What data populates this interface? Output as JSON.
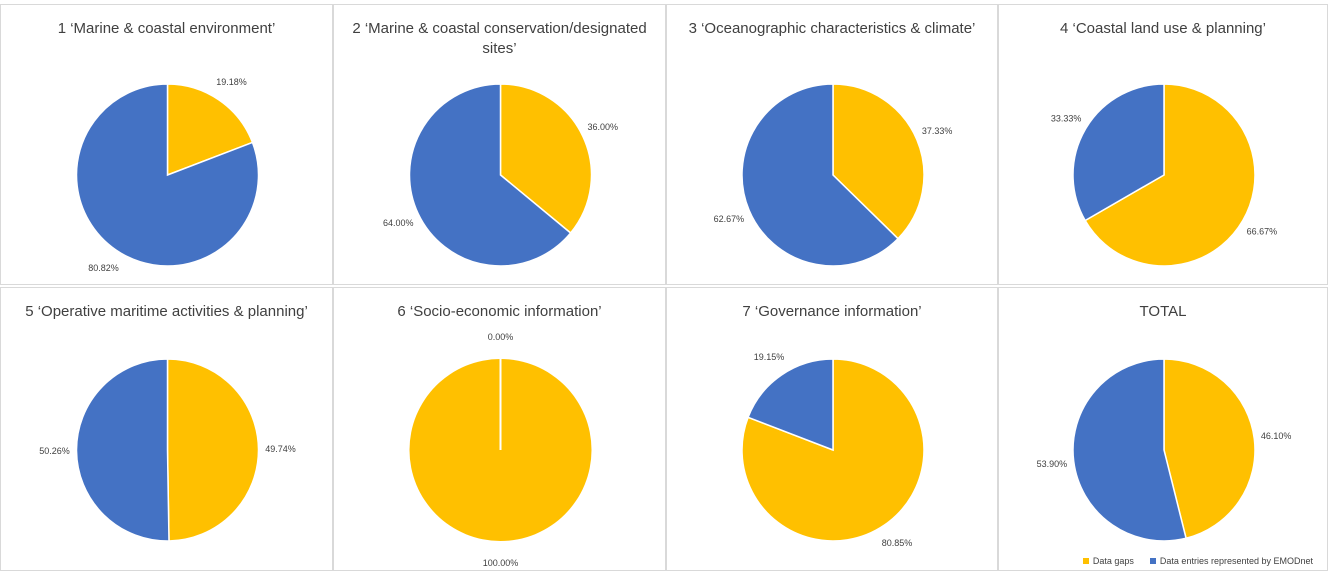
{
  "colors": {
    "gaps": "#FFC000",
    "represented": "#4472C4"
  },
  "legend": {
    "gaps_label": "Data gaps",
    "represented_label": "Data entries represented by EMODnet"
  },
  "chart_data": [
    {
      "type": "pie",
      "title": "1 ‘Marine & coastal environment’",
      "slices": [
        {
          "category": "Data gaps",
          "value": 19.18,
          "label": "19.18%"
        },
        {
          "category": "Data entries represented by EMODnet",
          "value": 80.82,
          "label": "80.82%"
        }
      ]
    },
    {
      "type": "pie",
      "title": "2 ‘Marine & coastal conservation/designated sites’",
      "slices": [
        {
          "category": "Data gaps",
          "value": 36.0,
          "label": "36.00%"
        },
        {
          "category": "Data entries represented by EMODnet",
          "value": 64.0,
          "label": "64.00%"
        }
      ]
    },
    {
      "type": "pie",
      "title": "3 ‘Oceanographic characteristics & climate’",
      "slices": [
        {
          "category": "Data gaps",
          "value": 37.33,
          "label": "37.33%"
        },
        {
          "category": "Data entries represented by EMODnet",
          "value": 62.67,
          "label": "62.67%"
        }
      ]
    },
    {
      "type": "pie",
      "title": "4 ‘Coastal land use & planning’",
      "slices": [
        {
          "category": "Data gaps",
          "value": 66.67,
          "label": "66.67%"
        },
        {
          "category": "Data entries represented by EMODnet",
          "value": 33.33,
          "label": "33.33%"
        }
      ]
    },
    {
      "type": "pie",
      "title": "5 ‘Operative maritime activities & planning’",
      "slices": [
        {
          "category": "Data gaps",
          "value": 49.74,
          "label": "49.74%"
        },
        {
          "category": "Data entries represented by EMODnet",
          "value": 50.26,
          "label": "50.26%"
        }
      ]
    },
    {
      "type": "pie",
      "title": "6 ‘Socio-economic information’",
      "slices": [
        {
          "category": "Data gaps",
          "value": 100.0,
          "label": "100.00%"
        },
        {
          "category": "Data entries represented by EMODnet",
          "value": 0.0,
          "label": "0.00%"
        }
      ]
    },
    {
      "type": "pie",
      "title": "7 ‘Governance information’",
      "slices": [
        {
          "category": "Data gaps",
          "value": 80.85,
          "label": "80.85%"
        },
        {
          "category": "Data entries represented by EMODnet",
          "value": 19.15,
          "label": "19.15%"
        }
      ]
    },
    {
      "type": "pie",
      "title": "TOTAL",
      "slices": [
        {
          "category": "Data gaps",
          "value": 46.1,
          "label": "46.10%"
        },
        {
          "category": "Data entries represented by EMODnet",
          "value": 53.9,
          "label": "53.90%"
        }
      ]
    }
  ]
}
